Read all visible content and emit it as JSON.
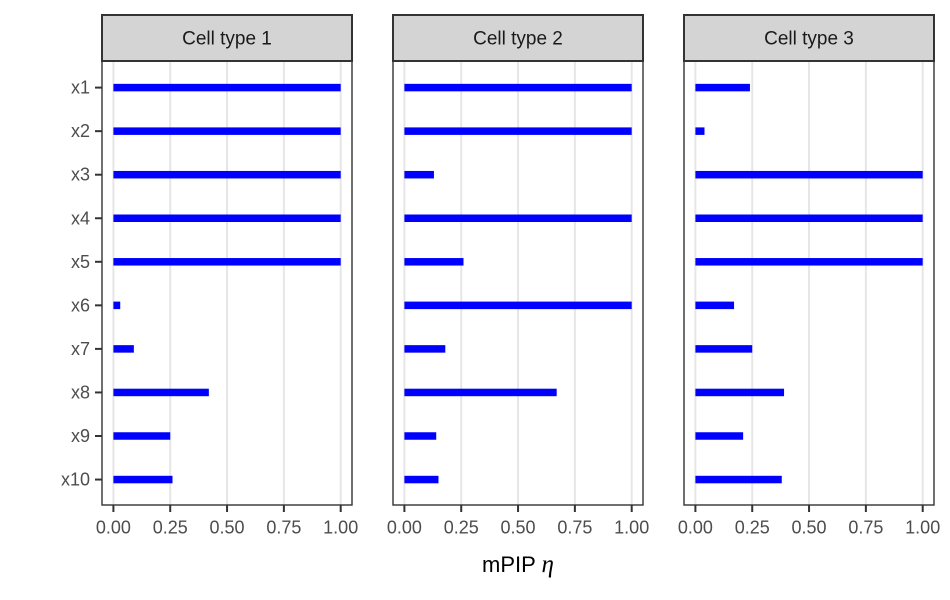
{
  "chart_data": {
    "type": "bar",
    "orientation": "horizontal",
    "title": "",
    "xlabel": "mPIP η",
    "ylabel": "",
    "categories": [
      "x1",
      "x2",
      "x3",
      "x4",
      "x5",
      "x6",
      "x7",
      "x8",
      "x9",
      "x10"
    ],
    "facets": [
      {
        "label": "Cell type 1",
        "values": [
          1.0,
          1.0,
          1.0,
          1.0,
          1.0,
          0.03,
          0.09,
          0.42,
          0.25,
          0.26
        ]
      },
      {
        "label": "Cell type 2",
        "values": [
          1.0,
          1.0,
          0.13,
          1.0,
          0.26,
          1.0,
          0.18,
          0.67,
          0.14,
          0.15
        ]
      },
      {
        "label": "Cell type 3",
        "values": [
          0.24,
          0.04,
          1.0,
          1.0,
          1.0,
          0.17,
          0.25,
          0.39,
          0.21,
          0.38
        ]
      }
    ],
    "x_ticks": {
      "labels": [
        "0.00",
        "0.25",
        "0.50",
        "0.75",
        "1.00"
      ],
      "values": [
        0,
        0.25,
        0.5,
        0.75,
        1
      ]
    },
    "xlim": [
      0,
      1
    ],
    "grid": "vertical-major-only",
    "legend_position": "none",
    "colors": {
      "bar": "#0000FF",
      "strip_fill": "#D4D4D4",
      "panel_border": "#333333",
      "gridline": "#E6E6E6",
      "axis_text": "#4D4D4D",
      "strip_text": "#1A1A1A",
      "axis_title": "#000000",
      "tick_mark": "#333333",
      "background": "#FFFFFF"
    }
  }
}
